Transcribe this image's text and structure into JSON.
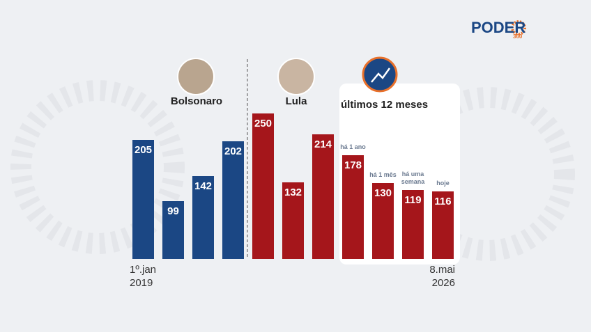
{
  "chart_data": {
    "type": "bar",
    "brand": {
      "name": "PODER",
      "number": "360"
    },
    "highlight_title": "últimos 12 meses",
    "categories": [
      "1º.jan 2019",
      null,
      null,
      null,
      null,
      null,
      null,
      null,
      null,
      null,
      "8.mai 2026"
    ],
    "period_labels": [
      null,
      null,
      null,
      null,
      null,
      null,
      null,
      "há 1 ano",
      "há 1 mês",
      "há uma semana",
      "hoje"
    ],
    "series": [
      {
        "name": "Bolsonaro",
        "color": "#1b4784",
        "values": [
          205,
          99,
          142,
          202,
          null,
          null,
          null,
          null,
          null,
          null,
          null
        ]
      },
      {
        "name": "Lula",
        "color": "#a5161b",
        "values": [
          null,
          null,
          null,
          null,
          250,
          132,
          214,
          178,
          130,
          119,
          116
        ]
      }
    ]
  }
}
